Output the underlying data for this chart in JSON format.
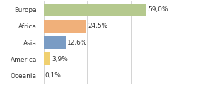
{
  "categories": [
    "Europa",
    "Africa",
    "Asia",
    "America",
    "Oceania"
  ],
  "values": [
    59.0,
    24.5,
    12.6,
    3.9,
    0.1
  ],
  "labels": [
    "59,0%",
    "24,5%",
    "12,6%",
    "3,9%",
    "0,1%"
  ],
  "bar_colors": [
    "#b5c98e",
    "#f0b07a",
    "#7a9cc4",
    "#f0d070",
    "#e8e8a0"
  ],
  "background_color": "#ffffff",
  "xlim": [
    0,
    75
  ],
  "bar_height": 0.75,
  "label_fontsize": 6.5,
  "tick_fontsize": 6.5,
  "grid_ticks": [
    0,
    25,
    50,
    75
  ],
  "grid_color": "#cccccc"
}
